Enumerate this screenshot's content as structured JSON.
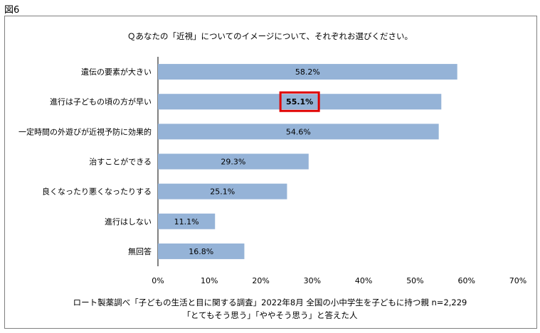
{
  "figure_label": "図6",
  "colors": {
    "bar": "#95b3d7",
    "highlight_border": "#e00000",
    "frame": "#7f7f7f"
  },
  "chart_data": {
    "type": "bar",
    "orientation": "horizontal",
    "title": "Ｑあなたの「近視」についてのイメージについて、それぞれお選びください。",
    "categories": [
      "遺伝の要素が大きい",
      "進行は子どもの頃の方が早い",
      "一定時間の外遊びが近視予防に効果的",
      "治すことができる",
      "良くなったり悪くなったりする",
      "進行はしない",
      "無回答"
    ],
    "values": [
      58.2,
      55.1,
      54.6,
      29.3,
      25.1,
      11.1,
      16.8
    ],
    "data_labels": [
      "58.2%",
      "55.1%",
      "54.6%",
      "29.3%",
      "25.1%",
      "11.1%",
      "16.8%"
    ],
    "highlighted_index": 1,
    "xlim": [
      0,
      70
    ],
    "x_ticks": [
      0,
      10,
      20,
      30,
      40,
      50,
      60,
      70
    ],
    "x_tick_labels": [
      "0%",
      "10%",
      "20%",
      "30%",
      "40%",
      "50%",
      "60%",
      "70%"
    ],
    "grid": false
  },
  "source_lines": [
    "ロート製薬調べ「子どもの生活と目に関する調査」2022年8月  全国の小中学生を子どもに持つ親   n=2,229",
    "「とてもそう思う」「ややそう思う」と答えた人"
  ]
}
